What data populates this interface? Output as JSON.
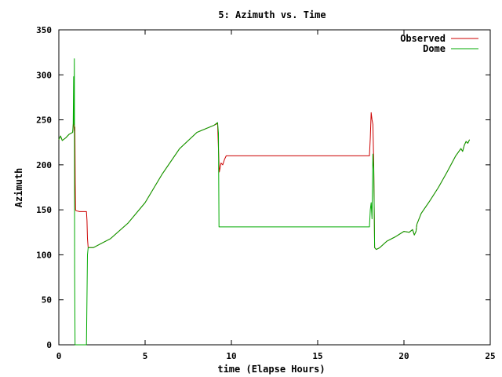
{
  "chart_data": {
    "type": "line",
    "title": "5: Azimuth vs. Time",
    "xlabel": "time (Elapse Hours)",
    "ylabel": "Azimuth",
    "xlim": [
      0,
      25
    ],
    "ylim": [
      0,
      350
    ],
    "xticks": [
      "0",
      "5",
      "10",
      "15",
      "20",
      "25"
    ],
    "yticks": [
      "0",
      "50",
      "100",
      "150",
      "200",
      "250",
      "300",
      "350"
    ],
    "legend_position": "top-right",
    "grid": false,
    "series": [
      {
        "name": "Observed",
        "color": "#cc0000",
        "points": [
          [
            0.0,
            228
          ],
          [
            0.1,
            232
          ],
          [
            0.2,
            227
          ],
          [
            0.4,
            230
          ],
          [
            0.6,
            234
          ],
          [
            0.8,
            236
          ],
          [
            0.85,
            245
          ],
          [
            0.88,
            260
          ],
          [
            0.9,
            238
          ],
          [
            0.93,
            242
          ],
          [
            0.95,
            180
          ],
          [
            0.97,
            150
          ],
          [
            1.0,
            149
          ],
          [
            1.2,
            148
          ],
          [
            1.6,
            148
          ],
          [
            1.63,
            138
          ],
          [
            1.66,
            118
          ],
          [
            1.7,
            108
          ],
          [
            2.0,
            108
          ],
          [
            3.0,
            118
          ],
          [
            4.0,
            135
          ],
          [
            5.0,
            158
          ],
          [
            6.0,
            190
          ],
          [
            7.0,
            218
          ],
          [
            8.0,
            236
          ],
          [
            9.0,
            244
          ],
          [
            9.2,
            246
          ],
          [
            9.25,
            218
          ],
          [
            9.3,
            192
          ],
          [
            9.4,
            202
          ],
          [
            9.5,
            200
          ],
          [
            9.6,
            206
          ],
          [
            9.7,
            210
          ],
          [
            10.0,
            210
          ],
          [
            12.0,
            210
          ],
          [
            14.0,
            210
          ],
          [
            16.0,
            210
          ],
          [
            18.0,
            210
          ],
          [
            18.05,
            230
          ],
          [
            18.1,
            258
          ],
          [
            18.15,
            250
          ],
          [
            18.2,
            245
          ],
          [
            18.25,
            200
          ],
          [
            18.3,
            108
          ],
          [
            18.4,
            106
          ],
          [
            18.6,
            108
          ],
          [
            19.0,
            115
          ],
          [
            19.5,
            120
          ],
          [
            20.0,
            126
          ],
          [
            20.3,
            125
          ],
          [
            20.5,
            128
          ],
          [
            20.6,
            122
          ],
          [
            20.7,
            126
          ],
          [
            20.75,
            134
          ],
          [
            21.0,
            146
          ],
          [
            21.5,
            160
          ],
          [
            22.0,
            175
          ],
          [
            22.5,
            192
          ],
          [
            23.0,
            210
          ],
          [
            23.3,
            218
          ],
          [
            23.4,
            215
          ],
          [
            23.5,
            222
          ],
          [
            23.6,
            226
          ],
          [
            23.7,
            224
          ],
          [
            23.8,
            228
          ]
        ]
      },
      {
        "name": "Dome",
        "color": "#00aa00",
        "points": [
          [
            0.0,
            228
          ],
          [
            0.1,
            232
          ],
          [
            0.2,
            227
          ],
          [
            0.4,
            230
          ],
          [
            0.6,
            234
          ],
          [
            0.8,
            236
          ],
          [
            0.83,
            246
          ],
          [
            0.86,
            298
          ],
          [
            0.88,
            245
          ],
          [
            0.9,
            318
          ],
          [
            0.92,
            80
          ],
          [
            0.94,
            0
          ],
          [
            1.6,
            0
          ],
          [
            1.62,
            30
          ],
          [
            1.66,
            100
          ],
          [
            1.7,
            108
          ],
          [
            2.0,
            108
          ],
          [
            3.0,
            118
          ],
          [
            4.0,
            135
          ],
          [
            5.0,
            158
          ],
          [
            6.0,
            190
          ],
          [
            7.0,
            218
          ],
          [
            8.0,
            236
          ],
          [
            9.0,
            244
          ],
          [
            9.2,
            247
          ],
          [
            9.25,
            235
          ],
          [
            9.28,
            131
          ],
          [
            10.0,
            131
          ],
          [
            12.0,
            131
          ],
          [
            14.0,
            131
          ],
          [
            16.0,
            131
          ],
          [
            18.0,
            131
          ],
          [
            18.05,
            150
          ],
          [
            18.1,
            158
          ],
          [
            18.15,
            140
          ],
          [
            18.2,
            212
          ],
          [
            18.25,
            195
          ],
          [
            18.3,
            108
          ],
          [
            18.4,
            106
          ],
          [
            18.6,
            108
          ],
          [
            19.0,
            115
          ],
          [
            19.5,
            120
          ],
          [
            20.0,
            126
          ],
          [
            20.3,
            125
          ],
          [
            20.5,
            128
          ],
          [
            20.6,
            122
          ],
          [
            20.7,
            126
          ],
          [
            20.75,
            134
          ],
          [
            21.0,
            146
          ],
          [
            21.5,
            160
          ],
          [
            22.0,
            175
          ],
          [
            22.5,
            192
          ],
          [
            23.0,
            210
          ],
          [
            23.3,
            218
          ],
          [
            23.4,
            215
          ],
          [
            23.5,
            222
          ],
          [
            23.6,
            226
          ],
          [
            23.7,
            224
          ],
          [
            23.8,
            228
          ]
        ]
      }
    ]
  }
}
